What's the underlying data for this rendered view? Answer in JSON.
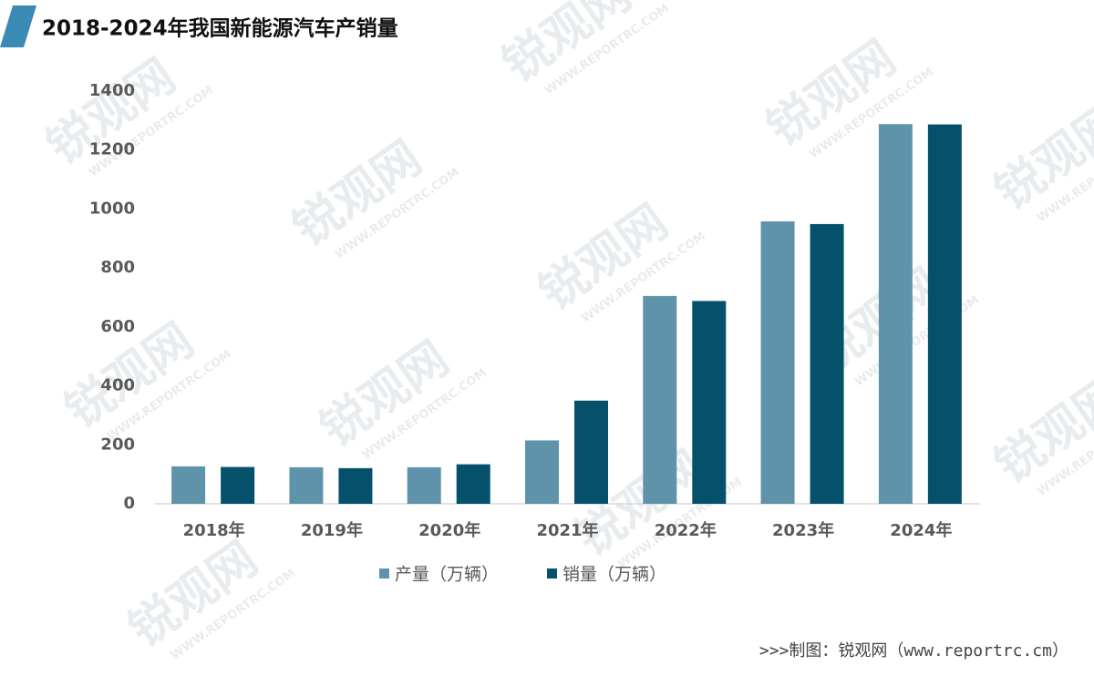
{
  "chart_data": {
    "type": "bar",
    "title": "2018-2024年我国新能源汽车产销量",
    "categories": [
      "2018年",
      "2019年",
      "2020年",
      "2021年",
      "2022年",
      "2023年",
      "2024年"
    ],
    "series": [
      {
        "name": "产量（万辆）",
        "color": "#5f93aa",
        "values": [
          127,
          124,
          124,
          215,
          705,
          958,
          1288
        ]
      },
      {
        "name": "销量（万辆）",
        "color": "#05506b",
        "values": [
          125,
          121,
          134,
          350,
          688,
          949,
          1287
        ]
      }
    ],
    "ylim": [
      0,
      1400
    ],
    "yticks": [
      0,
      200,
      400,
      600,
      800,
      1000,
      1200,
      1400
    ],
    "grid": false,
    "legend": "bottom",
    "source": ">>>制图：锐观网（www.reportrc.cm）"
  },
  "watermark": {
    "text": "锐观网",
    "url": "WWW.REPORTRC.COM"
  }
}
